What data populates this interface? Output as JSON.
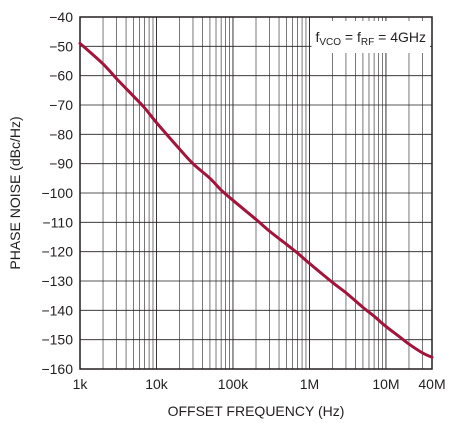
{
  "chart_data": {
    "type": "line",
    "title": "",
    "xlabel": "OFFSET FREQUENCY (Hz)",
    "ylabel": "PHASE NOISE (dBc/Hz)",
    "x_scale": "log",
    "xlim": [
      1000,
      40000000
    ],
    "ylim": [
      -160,
      -40
    ],
    "grid": true,
    "x_tick_values": [
      1000,
      10000,
      100000,
      1000000,
      10000000,
      40000000
    ],
    "x_tick_labels": [
      "1k",
      "10k",
      "100k",
      "1M",
      "10M",
      "40M"
    ],
    "y_tick_values": [
      -40,
      -50,
      -60,
      -70,
      -80,
      -90,
      -100,
      -110,
      -120,
      -130,
      -140,
      -150,
      -160
    ],
    "y_tick_labels": [
      "−40",
      "−50",
      "−60",
      "−70",
      "−80",
      "−90",
      "−100",
      "−110",
      "−120",
      "−130",
      "−140",
      "−150",
      "−160"
    ],
    "annotation": {
      "text_parts": [
        {
          "t": "f",
          "sub": false
        },
        {
          "t": "VCO",
          "sub": true
        },
        {
          "t": " = f",
          "sub": false
        },
        {
          "t": "RF",
          "sub": true
        },
        {
          "t": " = 4GHz",
          "sub": false
        }
      ],
      "position": "top-right"
    },
    "series": [
      {
        "color": "#a3143a",
        "x": [
          1000,
          2000,
          3000,
          5000,
          7000,
          10000,
          20000,
          30000,
          50000,
          70000,
          100000,
          200000,
          300000,
          500000,
          700000,
          1000000,
          2000000,
          3000000,
          5000000,
          7000000,
          10000000,
          15000000,
          20000000,
          30000000,
          40000000
        ],
        "y": [
          -49,
          -56,
          -61,
          -67,
          -71,
          -76,
          -85,
          -90,
          -95,
          -99,
          -102.5,
          -109,
          -113,
          -117.5,
          -120.5,
          -124,
          -130.5,
          -134,
          -139,
          -142,
          -145.5,
          -149,
          -151.5,
          -154.5,
          -156
        ]
      }
    ]
  }
}
